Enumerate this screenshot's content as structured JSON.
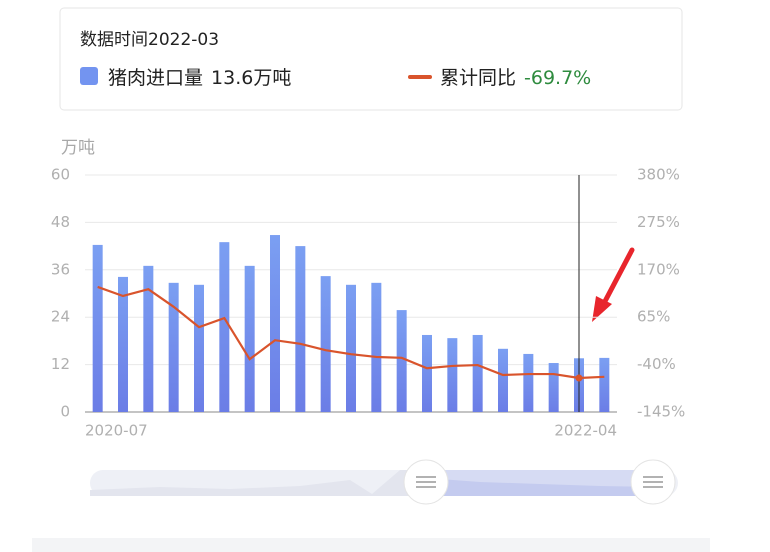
{
  "chart_data": {
    "type": "bar-line",
    "tooltip": {
      "label": "数据时间",
      "date": "2022-03",
      "value_labels": [
        "13.6万吨",
        "-69.7%"
      ]
    },
    "y_label": "万吨",
    "categories": [
      "2020-07",
      null,
      null,
      null,
      null,
      null,
      null,
      null,
      null,
      null,
      null,
      null,
      null,
      null,
      null,
      null,
      null,
      null,
      null,
      null,
      "2022-04"
    ],
    "series": [
      {
        "name": "猪肉进口量",
        "type": "bar",
        "color": "#7394f0",
        "values": [
          42.3,
          34.2,
          37,
          32.7,
          32.2,
          43,
          37,
          44.8,
          42,
          34.4,
          32.2,
          32.7,
          25.8,
          19.5,
          18.7,
          19.5,
          16,
          14.7,
          12.4,
          13.6,
          13.7
        ]
      },
      {
        "name": "累计同比",
        "type": "line",
        "axis": "y2",
        "color": "#d9542c",
        "values": [
          132,
          112,
          127,
          88,
          43,
          63,
          -28,
          14,
          6,
          -8,
          -17,
          -23,
          -25,
          -48,
          -43,
          -41,
          -63,
          -61,
          -61,
          -69.7,
          -67
        ]
      }
    ],
    "ylim": [
      0,
      60
    ],
    "yticks": [
      0,
      12,
      24,
      36,
      48,
      60
    ],
    "y2lim": [
      -145,
      380
    ],
    "y2ticks": [
      {
        "value": -145,
        "label": "-145%"
      },
      {
        "value": -40,
        "label": "-40%"
      },
      {
        "value": 65,
        "label": "65%"
      },
      {
        "value": 170,
        "label": "170%"
      },
      {
        "value": 275,
        "label": "275%"
      },
      {
        "value": 380,
        "label": "380%"
      }
    ],
    "grid": true,
    "crosshair_index": 19,
    "value_label_color": "#2e8b3e"
  }
}
